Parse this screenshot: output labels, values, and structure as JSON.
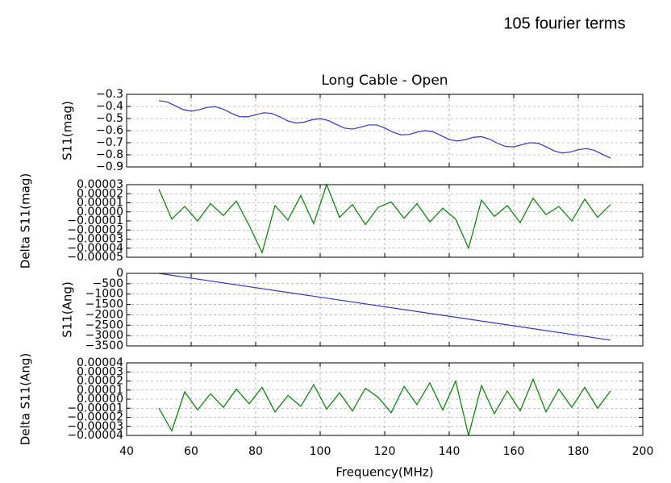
{
  "header": "105 fourier terms",
  "chart_data": [
    {
      "type": "line",
      "title": "Long Cable - Open",
      "ylabel": "S11(mag)",
      "color": "#3333cc",
      "grid": true,
      "xlim": [
        40,
        200
      ],
      "xticks": [
        40,
        60,
        80,
        100,
        120,
        140,
        160,
        180,
        200
      ],
      "ylim": [
        -0.9,
        -0.3
      ],
      "yticks": [
        {
          "value": -0.9,
          "label": "−0.9"
        },
        {
          "value": -0.8,
          "label": "−0.8"
        },
        {
          "value": -0.7,
          "label": "−0.7"
        },
        {
          "value": -0.6,
          "label": "−0.6"
        },
        {
          "value": -0.5,
          "label": "−0.5"
        },
        {
          "value": -0.4,
          "label": "−0.4"
        },
        {
          "value": -0.3,
          "label": "−0.3"
        }
      ],
      "x": [
        50,
        52.5,
        55,
        57.5,
        60,
        62.5,
        65,
        67.5,
        70,
        72.5,
        75,
        77.5,
        80,
        82.5,
        85,
        87.5,
        90,
        92.5,
        95,
        97.5,
        100,
        102.5,
        105,
        107.5,
        110,
        112.5,
        115,
        117.5,
        120,
        122.5,
        125,
        127.5,
        130,
        132.5,
        135,
        137.5,
        140,
        142.5,
        145,
        147.5,
        150,
        152.5,
        155,
        157.5,
        160,
        162.5,
        165,
        167.5,
        170,
        172.5,
        175,
        177.5,
        180,
        182.5,
        185,
        187.5,
        190
      ],
      "values": [
        -0.352,
        -0.362,
        -0.394,
        -0.426,
        -0.439,
        -0.427,
        -0.408,
        -0.402,
        -0.423,
        -0.457,
        -0.484,
        -0.486,
        -0.469,
        -0.452,
        -0.457,
        -0.486,
        -0.52,
        -0.537,
        -0.53,
        -0.51,
        -0.501,
        -0.516,
        -0.549,
        -0.579,
        -0.587,
        -0.572,
        -0.553,
        -0.553,
        -0.578,
        -0.612,
        -0.635,
        -0.632,
        -0.613,
        -0.6,
        -0.61,
        -0.641,
        -0.674,
        -0.686,
        -0.675,
        -0.655,
        -0.65,
        -0.67,
        -0.705,
        -0.731,
        -0.734,
        -0.716,
        -0.7,
        -0.704,
        -0.733,
        -0.767,
        -0.785,
        -0.777,
        -0.758,
        -0.748,
        -0.763,
        -0.796,
        -0.827
      ]
    },
    {
      "type": "line",
      "ylabel": "Delta S11(mag)",
      "color": "#007f00",
      "grid": true,
      "xlim": [
        40,
        200
      ],
      "xticks": [
        40,
        60,
        80,
        100,
        120,
        140,
        160,
        180,
        200
      ],
      "ylim": [
        -5e-05,
        3e-05
      ],
      "yticks": [
        {
          "value": -5e-05,
          "label": "−0.00005"
        },
        {
          "value": -4e-05,
          "label": "−0.00004"
        },
        {
          "value": -3e-05,
          "label": "−0.00003"
        },
        {
          "value": -2e-05,
          "label": "−0.00002"
        },
        {
          "value": -1e-05,
          "label": "−0.00001"
        },
        {
          "value": 0,
          "label": "0.00000"
        },
        1e-05,
        2e-05,
        3e-05
      ],
      "x": [
        50,
        54,
        58,
        62,
        66,
        70,
        74,
        78,
        82,
        86,
        90,
        94,
        98,
        102,
        106,
        110,
        114,
        118,
        122,
        126,
        130,
        134,
        138,
        142,
        146,
        150,
        154,
        158,
        162,
        166,
        170,
        174,
        178,
        182,
        186,
        190
      ],
      "values": [
        2.5e-05,
        -8e-06,
        6e-06,
        -1e-05,
        9e-06,
        -4e-06,
        1.2e-05,
        -1.5e-05,
        -4.5e-05,
        7e-06,
        -9e-06,
        1.8e-05,
        -1.3e-05,
        3e-05,
        -6e-06,
        8e-06,
        -1.4e-05,
        5e-06,
        1.1e-05,
        -7e-06,
        9e-06,
        -1.1e-05,
        4e-06,
        -8e-06,
        -4e-05,
        1.3e-05,
        -5e-06,
        7e-06,
        -1.2e-05,
        1.5e-05,
        -3e-06,
        6e-06,
        -1e-05,
        1.4e-05,
        -6e-06,
        8e-06
      ]
    },
    {
      "type": "line",
      "ylabel": "S11(Ang)",
      "color": "#3333cc",
      "grid": true,
      "xlim": [
        40,
        200
      ],
      "xticks": [
        40,
        60,
        80,
        100,
        120,
        140,
        160,
        180,
        200
      ],
      "ylim": [
        -3500,
        0
      ],
      "yticks": [
        {
          "value": -3500,
          "label": "−3500"
        },
        {
          "value": -3000,
          "label": "−3000"
        },
        {
          "value": -2500,
          "label": "−2500"
        },
        {
          "value": -2000,
          "label": "−2000"
        },
        {
          "value": -1500,
          "label": "−1500"
        },
        {
          "value": -1000,
          "label": "−1000"
        },
        {
          "value": -500,
          "label": "−500"
        },
        0
      ],
      "x": [
        50,
        190
      ],
      "values": [
        0,
        -3220
      ]
    },
    {
      "type": "line",
      "ylabel": "Delta S11(Ang)",
      "xlabel": "Frequency(MHz)",
      "color": "#007f00",
      "grid": true,
      "xlim": [
        40,
        200
      ],
      "xticks": [
        40,
        60,
        80,
        100,
        120,
        140,
        160,
        180,
        200
      ],
      "ylim": [
        -4e-05,
        4e-05
      ],
      "yticks": [
        {
          "value": -4e-05,
          "label": "−0.00004"
        },
        {
          "value": -3e-05,
          "label": "−0.00003"
        },
        {
          "value": -2e-05,
          "label": "−0.00002"
        },
        {
          "value": -1e-05,
          "label": "−0.00001"
        },
        {
          "value": 0,
          "label": "0.00000"
        },
        1e-05,
        2e-05,
        3e-05,
        4e-05
      ],
      "x": [
        50,
        54,
        58,
        62,
        66,
        70,
        74,
        78,
        82,
        86,
        90,
        94,
        98,
        102,
        106,
        110,
        114,
        118,
        122,
        126,
        130,
        134,
        138,
        142,
        146,
        150,
        154,
        158,
        162,
        166,
        170,
        174,
        178,
        182,
        186,
        190
      ],
      "values": [
        -1e-05,
        -3.5e-05,
        8e-06,
        -1.2e-05,
        6e-06,
        -9e-06,
        1.1e-05,
        -5e-06,
        1.3e-05,
        -1.4e-05,
        4e-06,
        -8e-06,
        1.6e-05,
        -1.1e-05,
        7e-06,
        -1.3e-05,
        1.2e-05,
        2e-06,
        -1.5e-05,
        1.4e-05,
        -6e-06,
        1.8e-05,
        -1.2e-05,
        2e-05,
        -4e-05,
        1.5e-05,
        -1.6e-05,
        9e-06,
        -1.3e-05,
        2.2e-05,
        -1.4e-05,
        1.1e-05,
        -9e-06,
        1.3e-05,
        -1e-05,
        9e-06
      ]
    }
  ]
}
